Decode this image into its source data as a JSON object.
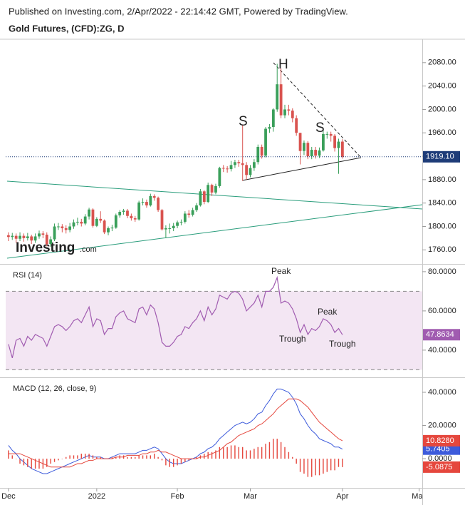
{
  "source": "Published on Investing.com, 2/Apr/2022 - 22:14:42 GMT, Powered by TradingView.",
  "chart_data": [
    {
      "type": "candlestick",
      "title": "Gold Futures, (CFD):ZG, D",
      "watermark": [
        "Investing",
        ".com"
      ],
      "annotations": [
        "S",
        "H",
        "S"
      ],
      "up_color": "#3a9f5a",
      "down_color": "#d9534f",
      "last_label": "1919.10",
      "xlim": [
        -2.2,
        107.8
      ],
      "ylim": [
        1736,
        2120
      ],
      "yticks": [
        {
          "value": 1760,
          "label": "1760.00"
        },
        {
          "value": 1800,
          "label": "1800.00"
        },
        {
          "value": 1840,
          "label": "1840.00"
        },
        {
          "value": 1880,
          "label": "1880.00"
        },
        {
          "value": 1920,
          "label": "1920.00"
        },
        {
          "value": 1960,
          "label": "1960.00"
        },
        {
          "value": 2000,
          "label": "2000.00"
        },
        {
          "value": 2040,
          "label": "2040.00"
        },
        {
          "value": 2080,
          "label": "2080.00"
        }
      ],
      "open": [
        1785,
        1782,
        1784,
        1779,
        1784,
        1780,
        1783,
        1776,
        1783,
        1788,
        1786,
        1770,
        1778,
        1800,
        1800,
        1797,
        1794,
        1800,
        1807,
        1808,
        1805,
        1817,
        1829,
        1801,
        1813,
        1810,
        1790,
        1797,
        1798,
        1819,
        1825,
        1827,
        1818,
        1814,
        1812,
        1841,
        1842,
        1836,
        1852,
        1849,
        1828,
        1795,
        1797,
        1797,
        1801,
        1807,
        1808,
        1822,
        1820,
        1828,
        1836,
        1860,
        1842,
        1871,
        1858,
        1869,
        1900,
        1899,
        1898,
        1905,
        1910,
        1908,
        1905,
        1888,
        1900,
        1910,
        1936,
        1921,
        1967,
        1970,
        2000,
        2043,
        1990,
        2000,
        1998,
        1985,
        1960,
        1929,
        1943,
        1920,
        1931,
        1921,
        1930,
        1958,
        1958,
        1955,
        1934,
        1945
      ],
      "high": [
        1790,
        1789,
        1788,
        1790,
        1788,
        1789,
        1786,
        1788,
        1793,
        1792,
        1790,
        1783,
        1805,
        1806,
        1804,
        1802,
        1806,
        1812,
        1815,
        1813,
        1821,
        1832,
        1831,
        1816,
        1826,
        1812,
        1800,
        1803,
        1822,
        1828,
        1830,
        1830,
        1822,
        1818,
        1844,
        1848,
        1846,
        1856,
        1855,
        1851,
        1830,
        1802,
        1805,
        1806,
        1810,
        1812,
        1826,
        1828,
        1832,
        1840,
        1864,
        1862,
        1875,
        1873,
        1873,
        1902,
        1905,
        1903,
        1912,
        1914,
        1914,
        1974,
        1910,
        1905,
        1915,
        1940,
        1940,
        1970,
        1975,
        2002,
        2078,
        2070,
        2008,
        2008,
        2002,
        1990,
        1960,
        1947,
        1946,
        1936,
        1936,
        1935,
        1966,
        1962,
        1962,
        1958,
        1950,
        1949
      ],
      "low": [
        1775,
        1777,
        1772,
        1775,
        1774,
        1776,
        1770,
        1772,
        1779,
        1780,
        1766,
        1765,
        1775,
        1794,
        1790,
        1788,
        1790,
        1796,
        1802,
        1800,
        1802,
        1812,
        1798,
        1799,
        1806,
        1787,
        1785,
        1792,
        1796,
        1815,
        1820,
        1814,
        1810,
        1808,
        1810,
        1836,
        1832,
        1834,
        1844,
        1825,
        1793,
        1780,
        1788,
        1792,
        1797,
        1802,
        1805,
        1815,
        1817,
        1825,
        1834,
        1838,
        1840,
        1852,
        1855,
        1866,
        1893,
        1892,
        1894,
        1900,
        1902,
        1878,
        1880,
        1884,
        1895,
        1906,
        1916,
        1918,
        1960,
        1962,
        1996,
        1985,
        1985,
        1990,
        1978,
        1955,
        1906,
        1922,
        1915,
        1915,
        1916,
        1917,
        1928,
        1950,
        1945,
        1928,
        1890,
        1916
      ],
      "close": [
        1782,
        1784,
        1779,
        1784,
        1780,
        1783,
        1776,
        1783,
        1788,
        1786,
        1770,
        1778,
        1800,
        1800,
        1797,
        1794,
        1800,
        1807,
        1808,
        1805,
        1817,
        1829,
        1801,
        1813,
        1810,
        1790,
        1797,
        1798,
        1819,
        1825,
        1827,
        1818,
        1814,
        1812,
        1841,
        1842,
        1836,
        1852,
        1849,
        1828,
        1795,
        1797,
        1797,
        1801,
        1807,
        1808,
        1822,
        1820,
        1828,
        1836,
        1860,
        1842,
        1871,
        1858,
        1869,
        1900,
        1899,
        1898,
        1905,
        1910,
        1908,
        1905,
        1888,
        1900,
        1910,
        1936,
        1921,
        1967,
        1970,
        2000,
        2043,
        1990,
        2000,
        1998,
        1985,
        1960,
        1929,
        1943,
        1920,
        1931,
        1921,
        1930,
        1958,
        1958,
        1955,
        1934,
        1945,
        1919.1
      ]
    },
    {
      "type": "line",
      "annotations": [
        "Peak",
        "Trough",
        "Peak",
        "Trough"
      ],
      "levels": [
        30,
        70
      ],
      "band_color": "#f3e6f3",
      "xlim": [
        -2.2,
        107.8
      ],
      "ylim": [
        26.5,
        83.6
      ],
      "last_label": "47.8634",
      "yticks": [
        {
          "value": 40,
          "label": "40.0000"
        },
        {
          "value": 60,
          "label": "60.0000"
        },
        {
          "value": 80,
          "label": "80.0000"
        }
      ],
      "series": [
        {
          "name": "RSI (14)",
          "color": "#a05bb0",
          "values": [
            43,
            36,
            45,
            46,
            42,
            47,
            45,
            48,
            47,
            46,
            42,
            47,
            52,
            53,
            52,
            50,
            52,
            55,
            56,
            54,
            58,
            62,
            52,
            56,
            55,
            48,
            51,
            51,
            57,
            59,
            60,
            56,
            55,
            54,
            61,
            62,
            58,
            63,
            61,
            54,
            44,
            42,
            42,
            44,
            47,
            48,
            52,
            51,
            54,
            56,
            60,
            55,
            62,
            58,
            61,
            68,
            67,
            66,
            69,
            70,
            69,
            66,
            60,
            62,
            64,
            68,
            62,
            70,
            70,
            72,
            77,
            64,
            65,
            64,
            61,
            56,
            49,
            53,
            48,
            51,
            50,
            52,
            56,
            55,
            53,
            49,
            51,
            47.8634
          ]
        }
      ]
    },
    {
      "type": "combo",
      "title": "MACD (12, 26, close, 9)",
      "xlim": [
        -2.2,
        107.8
      ],
      "ylim": [
        -17.6,
        48.6
      ],
      "yticks": [
        {
          "value": 0,
          "label": "0.0000"
        },
        {
          "value": 20,
          "label": "20.0000"
        },
        {
          "value": 40,
          "label": "40.0000"
        }
      ],
      "xticks": [
        {
          "value": 0,
          "label": "Dec"
        },
        {
          "value": 23,
          "label": "2022"
        },
        {
          "value": 44,
          "label": "Feb"
        },
        {
          "value": 63,
          "label": "Mar"
        },
        {
          "value": 87,
          "label": "Apr"
        },
        {
          "value": 107,
          "label": "May"
        }
      ],
      "series": [
        {
          "type": "line",
          "color": "#3d5bdb",
          "last_label": "5.7405",
          "values": [
            8,
            5,
            3,
            0,
            -2,
            -4,
            -6,
            -7,
            -8,
            -9,
            -9,
            -8,
            -7,
            -6,
            -5,
            -4,
            -3,
            -2,
            -1,
            0,
            1,
            2,
            1,
            1,
            1,
            0,
            0,
            1,
            2,
            3,
            3,
            3,
            3,
            3,
            4,
            5,
            5,
            6,
            7,
            6,
            3,
            0,
            -2,
            -3,
            -3,
            -3,
            -2,
            -1,
            0,
            1,
            3,
            4,
            6,
            7,
            9,
            12,
            14,
            16,
            18,
            20,
            21,
            22,
            21,
            22,
            24,
            27,
            28,
            32,
            35,
            39,
            42,
            42,
            41,
            40,
            37,
            33,
            27,
            24,
            20,
            17,
            15,
            12,
            11,
            10,
            9,
            7,
            7,
            5.7405
          ]
        },
        {
          "type": "line",
          "color": "#e5473d",
          "last_label": "10.8280",
          "values": [
            3,
            3,
            3,
            3,
            2,
            1,
            0,
            -1,
            -2,
            -3,
            -4,
            -5,
            -5,
            -5,
            -5,
            -5,
            -5,
            -4,
            -3,
            -3,
            -2,
            -1,
            -1,
            0,
            0,
            0,
            0,
            0,
            1,
            1,
            1,
            2,
            2,
            2,
            2,
            3,
            3,
            4,
            4,
            5,
            4,
            4,
            3,
            2,
            1,
            0,
            0,
            0,
            0,
            0,
            1,
            1,
            2,
            3,
            4,
            5,
            7,
            9,
            10,
            12,
            14,
            15,
            16,
            17,
            18,
            20,
            21,
            23,
            25,
            27,
            30,
            32,
            34,
            36,
            36,
            36,
            35,
            33,
            31,
            28,
            25,
            22,
            20,
            18,
            16,
            14,
            12,
            10.828
          ]
        },
        {
          "type": "bar",
          "color": "#e5473d",
          "last_label": "-5.0875",
          "values": [
            5,
            2,
            0,
            -3,
            -4,
            -5,
            -6,
            -6,
            -6,
            -6,
            -5,
            -3,
            -2,
            -1,
            0,
            1,
            2,
            2,
            2,
            3,
            3,
            3,
            2,
            1,
            1,
            0,
            0,
            1,
            1,
            2,
            2,
            1,
            1,
            1,
            2,
            2,
            2,
            2,
            3,
            1,
            -1,
            -4,
            -5,
            -5,
            -4,
            -3,
            -2,
            -1,
            0,
            1,
            2,
            3,
            4,
            4,
            5,
            7,
            7,
            7,
            8,
            8,
            7,
            7,
            5,
            5,
            6,
            7,
            7,
            9,
            10,
            12,
            12,
            10,
            7,
            4,
            1,
            -3,
            -8,
            -9,
            -11,
            -11,
            -10,
            -10,
            -9,
            -8,
            -7,
            -7,
            -5,
            -5.0875
          ]
        }
      ]
    }
  ]
}
